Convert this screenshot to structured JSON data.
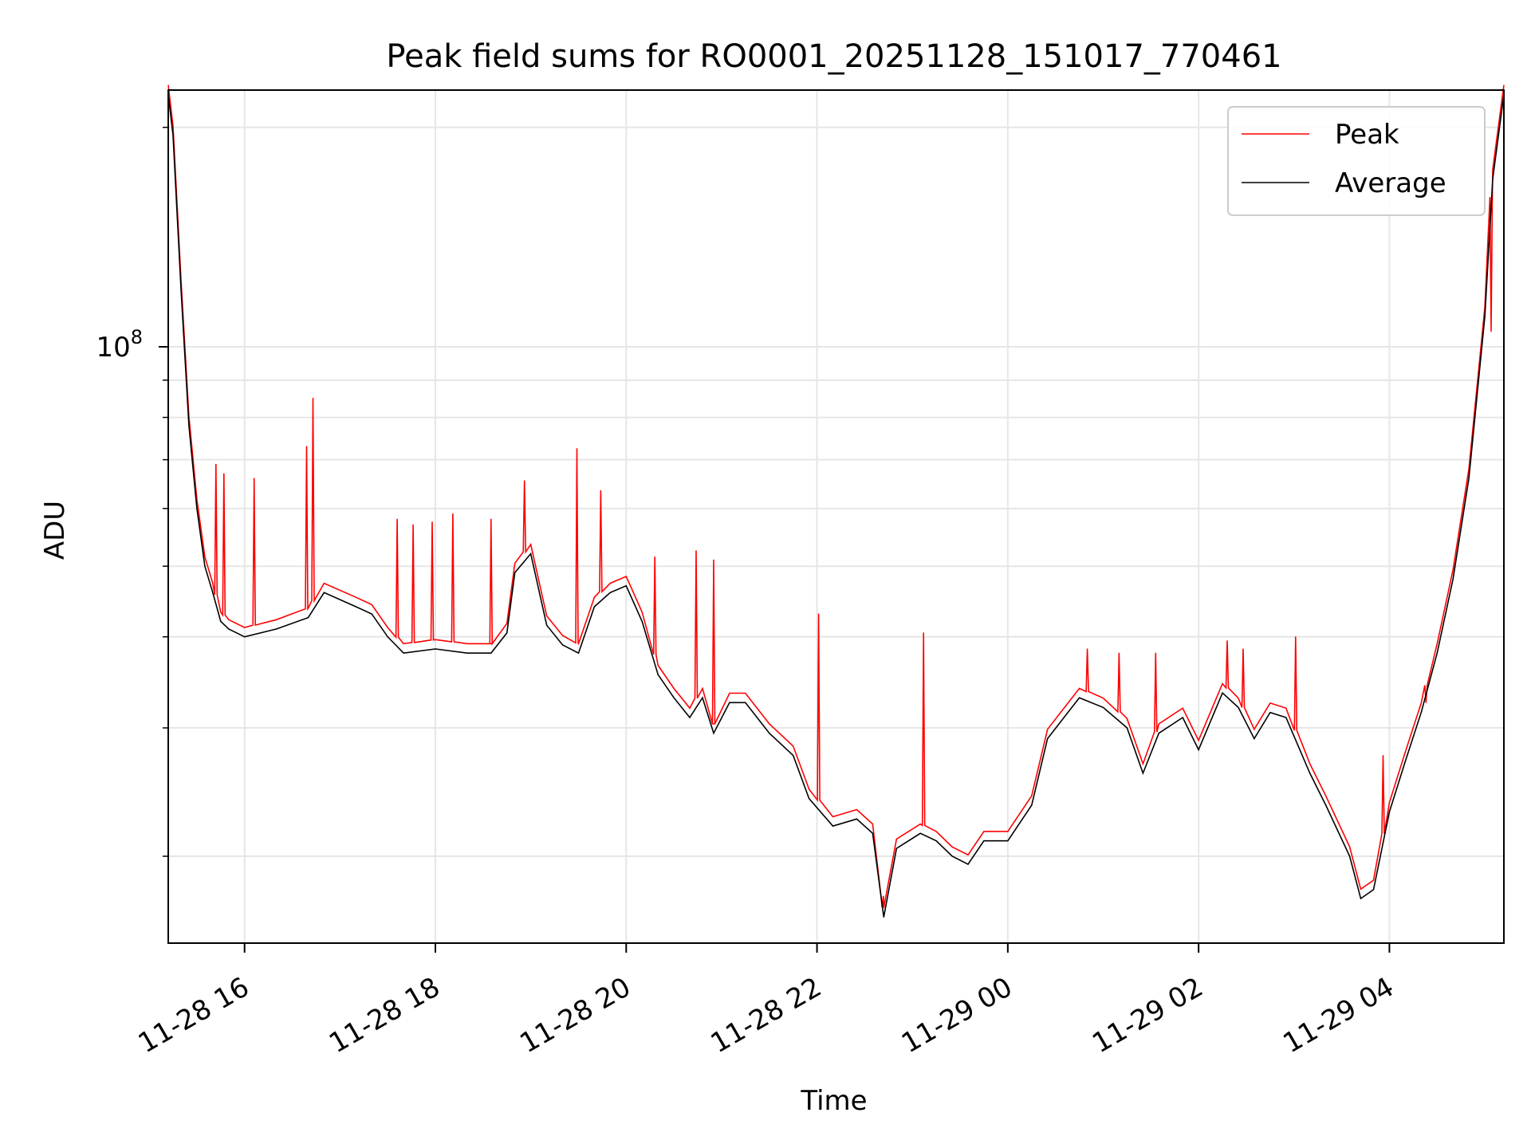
{
  "chart_data": {
    "type": "line",
    "title": "Peak field sums for RO0001_20251128_151017_770461",
    "xlabel": "Time",
    "ylabel": "ADU",
    "y_scale": "log",
    "ylim": [
      15200000,
      225000000
    ],
    "xlim": [
      "2025-11-28 15:12",
      "2025-11-29 05:12"
    ],
    "x_ticks": [
      "2025-11-28 16:00",
      "2025-11-28 18:00",
      "2025-11-28 20:00",
      "2025-11-28 22:00",
      "2025-11-29 00:00",
      "2025-11-29 02:00",
      "2025-11-29 04:00"
    ],
    "x_tick_labels": [
      "11-28 16",
      "11-28 18",
      "11-28 20",
      "11-28 22",
      "11-29 00",
      "11-29 02",
      "11-29 04"
    ],
    "y_major_tick_label": "10",
    "y_major_tick_exponent": "8",
    "grid": true,
    "legend_position": "top-right",
    "colors": {
      "peak": "#ff0000",
      "average": "#000000",
      "grid": "#e6e6e6",
      "axes": "#000000"
    },
    "series": [
      {
        "name": "Average",
        "color": "#000000",
        "x": [
          "2025-11-28 15:12",
          "2025-11-28 15:15",
          "2025-11-28 15:20",
          "2025-11-28 15:25",
          "2025-11-28 15:30",
          "2025-11-28 15:35",
          "2025-11-28 15:40",
          "2025-11-28 15:45",
          "2025-11-28 15:50",
          "2025-11-28 16:00",
          "2025-11-28 16:20",
          "2025-11-28 16:40",
          "2025-11-28 16:50",
          "2025-11-28 17:10",
          "2025-11-28 17:20",
          "2025-11-28 17:30",
          "2025-11-28 17:40",
          "2025-11-28 18:00",
          "2025-11-28 18:20",
          "2025-11-28 18:35",
          "2025-11-28 18:45",
          "2025-11-28 18:50",
          "2025-11-28 19:00",
          "2025-11-28 19:10",
          "2025-11-28 19:20",
          "2025-11-28 19:30",
          "2025-11-28 19:40",
          "2025-11-28 19:50",
          "2025-11-28 20:00",
          "2025-11-28 20:10",
          "2025-11-28 20:20",
          "2025-11-28 20:30",
          "2025-11-28 20:40",
          "2025-11-28 20:48",
          "2025-11-28 20:55",
          "2025-11-28 21:05",
          "2025-11-28 21:15",
          "2025-11-28 21:30",
          "2025-11-28 21:45",
          "2025-11-28 21:55",
          "2025-11-28 22:10",
          "2025-11-28 22:25",
          "2025-11-28 22:35",
          "2025-11-28 22:42",
          "2025-11-28 22:50",
          "2025-11-28 23:05",
          "2025-11-28 23:15",
          "2025-11-28 23:25",
          "2025-11-28 23:35",
          "2025-11-28 23:45",
          "2025-11-29 00:00",
          "2025-11-29 00:15",
          "2025-11-29 00:25",
          "2025-11-29 00:45",
          "2025-11-29 01:00",
          "2025-11-29 01:15",
          "2025-11-29 01:25",
          "2025-11-29 01:35",
          "2025-11-29 01:50",
          "2025-11-29 02:00",
          "2025-11-29 02:15",
          "2025-11-29 02:25",
          "2025-11-29 02:35",
          "2025-11-29 02:45",
          "2025-11-29 02:55",
          "2025-11-29 03:10",
          "2025-11-29 03:20",
          "2025-11-29 03:35",
          "2025-11-29 03:42",
          "2025-11-29 03:50",
          "2025-11-29 04:00",
          "2025-11-29 04:10",
          "2025-11-29 04:20",
          "2025-11-29 04:30",
          "2025-11-29 04:40",
          "2025-11-29 04:50",
          "2025-11-29 05:00",
          "2025-11-29 05:05",
          "2025-11-29 05:12"
        ],
        "y": [
          222000000,
          195000000,
          120000000,
          78000000,
          60000000,
          50000000,
          46000000,
          42000000,
          41000000,
          40000000,
          41000000,
          42500000,
          46000000,
          44000000,
          43000000,
          40000000,
          38000000,
          38500000,
          38000000,
          38000000,
          40500000,
          49000000,
          52000000,
          41500000,
          39000000,
          38000000,
          44000000,
          46000000,
          47000000,
          42000000,
          35500000,
          33000000,
          31000000,
          33000000,
          29500000,
          32500000,
          32500000,
          29500000,
          27500000,
          24000000,
          22000000,
          22500000,
          21500000,
          16500000,
          20500000,
          21500000,
          21000000,
          20000000,
          19500000,
          21000000,
          21000000,
          23500000,
          29000000,
          33000000,
          32000000,
          30000000,
          26000000,
          29500000,
          31000000,
          28000000,
          33500000,
          32000000,
          29000000,
          31500000,
          31000000,
          26000000,
          23500000,
          20000000,
          17500000,
          18000000,
          23000000,
          27000000,
          31500000,
          38000000,
          48000000,
          66000000,
          110000000,
          170000000,
          222000000
        ]
      },
      {
        "name": "Peak",
        "color": "#ff0000",
        "x": [
          "2025-11-28 15:42",
          "2025-11-28 15:47",
          "2025-11-28 16:06",
          "2025-11-28 16:39",
          "2025-11-28 16:43",
          "2025-11-28 17:36",
          "2025-11-28 17:46",
          "2025-11-28 17:58",
          "2025-11-28 18:11",
          "2025-11-28 18:35",
          "2025-11-28 18:56",
          "2025-11-28 19:29",
          "2025-11-28 19:44",
          "2025-11-28 20:18",
          "2025-11-28 20:44",
          "2025-11-28 20:55",
          "2025-11-28 22:01",
          "2025-11-28 22:41",
          "2025-11-28 23:07",
          "2025-11-29 00:50",
          "2025-11-29 01:10",
          "2025-11-29 01:33",
          "2025-11-29 02:18",
          "2025-11-29 02:28",
          "2025-11-29 03:01",
          "2025-11-29 03:56",
          "2025-11-29 04:23",
          "2025-11-29 05:04"
        ],
        "y": [
          69000000,
          67000000,
          66000000,
          73000000,
          85000000,
          58000000,
          57000000,
          57500000,
          59000000,
          58000000,
          65500000,
          72500000,
          63500000,
          51500000,
          52500000,
          51000000,
          43000000,
          17000000,
          40500000,
          38500000,
          38000000,
          38000000,
          39500000,
          38500000,
          40000000,
          27500000,
          32500000,
          105000000
        ]
      }
    ]
  }
}
